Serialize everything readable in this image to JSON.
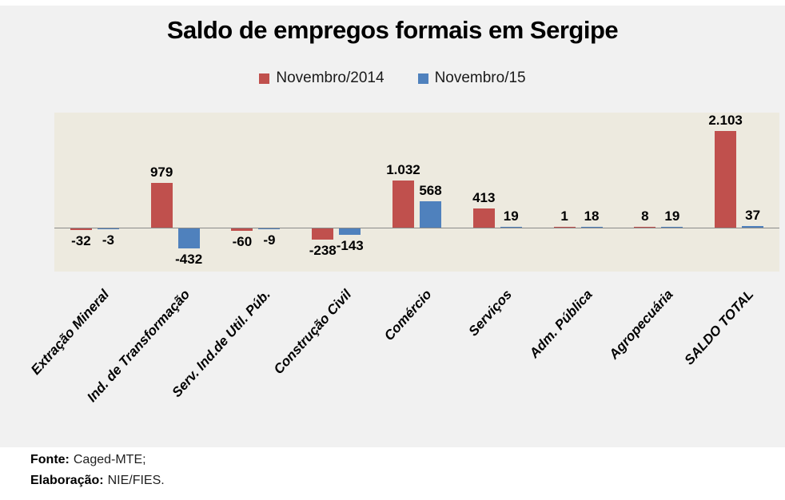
{
  "chart_data": {
    "type": "bar",
    "title": "Saldo de empregos formais em Sergipe",
    "categories": [
      "Extração Mineral",
      "Ind. de Transformação",
      "Serv. Ind.de Util. Púb.",
      "Construção Civil",
      "Comércio",
      "Serviços",
      "Adm. Pública",
      "Agropecuária",
      "SALDO TOTAL"
    ],
    "series": [
      {
        "name": "Novembro/2014",
        "color": "#c0504d",
        "values": [
          -32,
          979,
          -60,
          -238,
          1032,
          413,
          1,
          8,
          2103
        ],
        "display_labels": [
          "-32",
          "979",
          "-60",
          "-238",
          "1.032",
          "413",
          "1",
          "8",
          "2.103"
        ]
      },
      {
        "name": "Novembro/15",
        "color": "#4f81bd",
        "values": [
          -3,
          -432,
          -9,
          -143,
          568,
          19,
          18,
          19,
          37
        ],
        "display_labels": [
          "-3",
          "-432",
          "-9",
          "-143",
          "568",
          "19",
          "18",
          "19",
          "37"
        ]
      }
    ],
    "ylim": [
      -1000,
      2500
    ],
    "grid": false,
    "legend_position": "top",
    "data_labels": true,
    "category_label_rotation_deg": 48,
    "plot_background": "#edeadf",
    "panel_background": "#f1f1f1",
    "axis_color": "#8a8a8a"
  },
  "footer": {
    "source_label": "Fonte:",
    "source_value": "Caged-MTE;",
    "elaboration_label": "Elaboração:",
    "elaboration_value": "NIE/FIES."
  }
}
